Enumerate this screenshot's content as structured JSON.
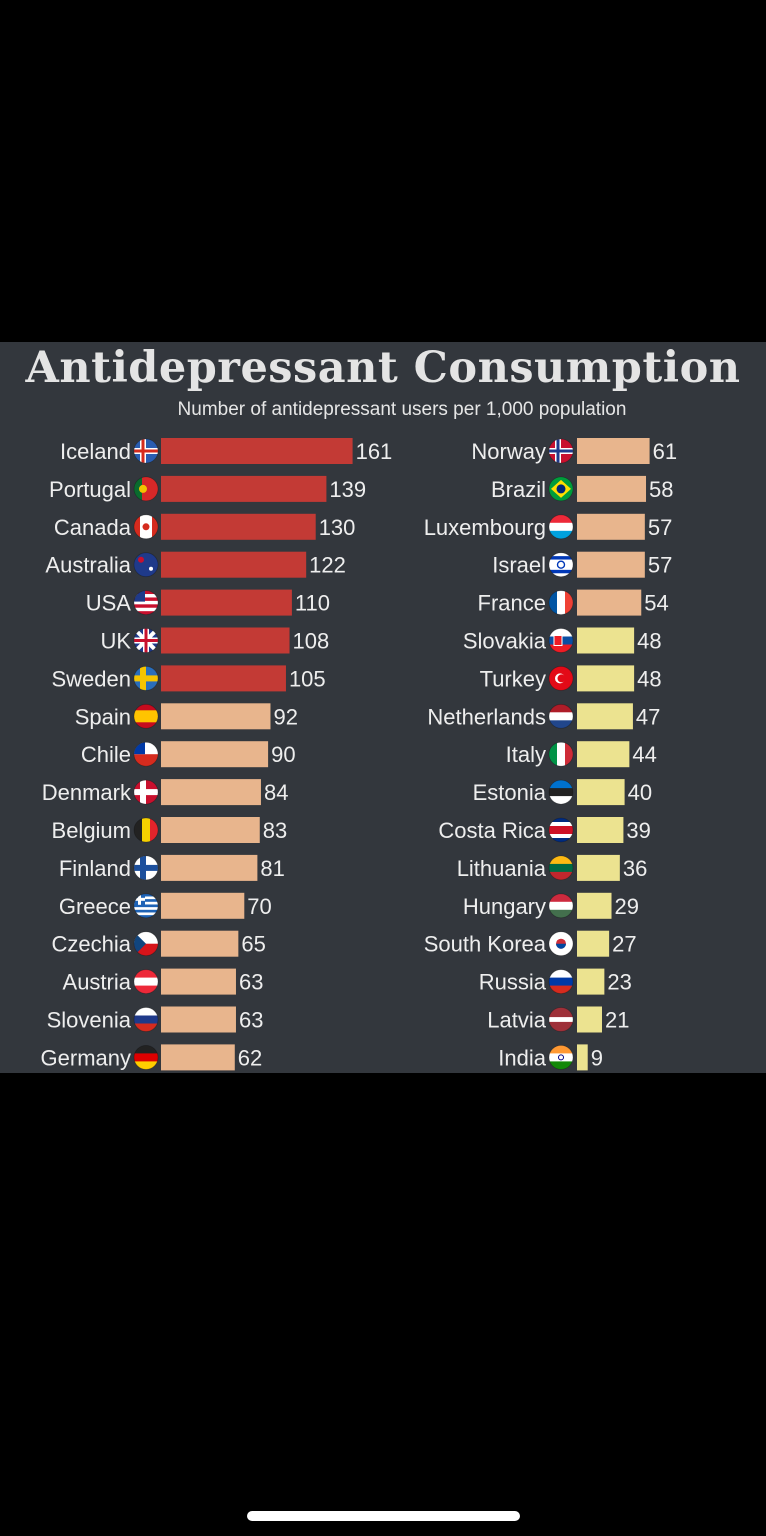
{
  "chart_data": {
    "type": "bar",
    "orientation": "horizontal",
    "title": "Antidepressant Consumption",
    "subtitle": "Number of antidepressant users per 1,000 population",
    "colors": {
      "top": "#c33a35",
      "mid": "#e8b58d",
      "low": "#ece390",
      "label": "#eeeeee"
    },
    "series": [
      {
        "name": "",
        "categories": [
          "Iceland",
          "Portugal",
          "Canada",
          "Australia",
          "USA",
          "UK",
          "Sweden",
          "Spain",
          "Chile",
          "Denmark",
          "Belgium",
          "Finland",
          "Greece",
          "Czechia",
          "Austria",
          "Slovenia",
          "Germany"
        ],
        "values": [
          161,
          139,
          130,
          122,
          110,
          108,
          105,
          92,
          90,
          84,
          83,
          81,
          70,
          65,
          63,
          63,
          62
        ],
        "flags": [
          "iceland-flag-icon",
          "portugal-flag-icon",
          "canada-flag-icon",
          "australia-flag-icon",
          "usa-flag-icon",
          "uk-flag-icon",
          "sweden-flag-icon",
          "spain-flag-icon",
          "chile-flag-icon",
          "denmark-flag-icon",
          "belgium-flag-icon",
          "finland-flag-icon",
          "greece-flag-icon",
          "czechia-flag-icon",
          "austria-flag-icon",
          "slovenia-flag-icon",
          "germany-flag-icon"
        ]
      },
      {
        "name": "",
        "categories": [
          "Norway",
          "Brazil",
          "Luxembourg",
          "Israel",
          "France",
          "Slovakia",
          "Turkey",
          "Netherlands",
          "Italy",
          "Estonia",
          "Costa Rica",
          "Lithuania",
          "Hungary",
          "South Korea",
          "Russia",
          "Latvia",
          "India"
        ],
        "values": [
          61,
          58,
          57,
          57,
          54,
          48,
          48,
          47,
          44,
          40,
          39,
          36,
          29,
          27,
          23,
          21,
          9
        ],
        "flags": [
          "norway-flag-icon",
          "brazil-flag-icon",
          "luxembourg-flag-icon",
          "israel-flag-icon",
          "france-flag-icon",
          "slovakia-flag-icon",
          "turkey-flag-icon",
          "netherlands-flag-icon",
          "italy-flag-icon",
          "estonia-flag-icon",
          "costa-rica-flag-icon",
          "lithuania-flag-icon",
          "hungary-flag-icon",
          "south-korea-flag-icon",
          "russia-flag-icon",
          "latvia-flag-icon",
          "india-flag-icon"
        ]
      }
    ]
  }
}
